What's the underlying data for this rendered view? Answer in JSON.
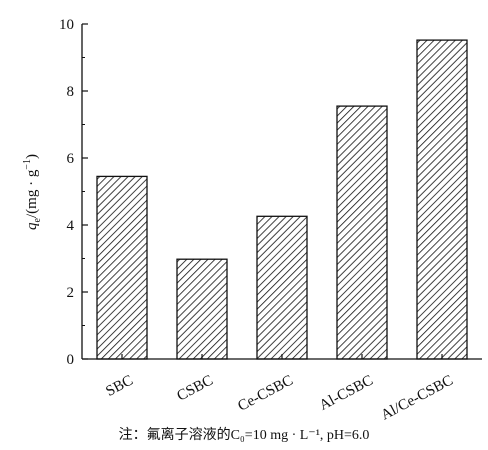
{
  "chart_data": {
    "type": "bar",
    "categories": [
      "SBC",
      "CSBC",
      "Ce-CSBC",
      "Al-CSBC",
      "Al/Ce-CSBC"
    ],
    "values": [
      5.45,
      2.98,
      4.26,
      7.55,
      9.52
    ],
    "ylabel": "q_e/(mg·g⁻¹)",
    "ylim": [
      0,
      10
    ],
    "yticks": [
      0,
      2,
      4,
      6,
      8,
      10
    ],
    "ytick_labels": [
      "0",
      "2",
      "4",
      "6",
      "8",
      "10"
    ],
    "bar_fill": "diagonal-hatch",
    "grid": false,
    "note": "注：氟离子溶液的C₀=10 mg · L⁻¹, pH=6.0"
  },
  "colors": {
    "ink": "#111111",
    "background": "#ffffff"
  }
}
